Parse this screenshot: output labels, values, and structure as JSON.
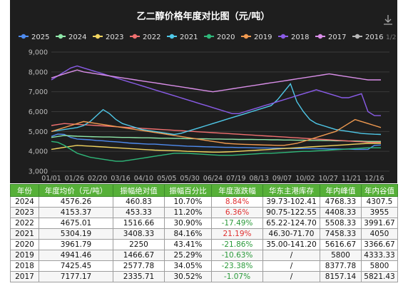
{
  "chart_data": {
    "type": "line",
    "title": "乙二醇价格年度对比图（元/吨）",
    "xlabel": "",
    "ylabel": "",
    "ylim": [
      3000,
      9000
    ],
    "y_ticks": [
      "3,000",
      "4,000",
      "5,000",
      "6,000",
      "7,000",
      "8,000",
      "9,000"
    ],
    "x_ticks": [
      "01/01",
      "01/26",
      "02/20",
      "03/16",
      "04/10",
      "05/05",
      "05/30",
      "06/24",
      "07/19",
      "08/13",
      "09/07",
      "10/02",
      "10/27",
      "11/21",
      "12/16"
    ],
    "grid": true,
    "legend_position": "top",
    "legend_page": "1/2",
    "series": [
      {
        "name": "2025",
        "color": "#4f8cf0",
        "values": [
          4750,
          4870,
          4850,
          4700,
          4620,
          4600,
          4580,
          4550,
          4530,
          4500,
          4480,
          4450,
          4420,
          4400,
          4380,
          4360,
          4360,
          4340,
          4320,
          4300,
          4280,
          4260,
          4250,
          4240,
          4230,
          4220,
          4210,
          4200,
          4200,
          4190,
          4190,
          4180,
          4170,
          4170,
          4160,
          4160,
          4150,
          4150,
          4140,
          4140,
          4140,
          4130,
          4130,
          4120,
          4120,
          4110,
          4110,
          4100,
          4100,
          4100,
          4300,
          4320
        ]
      },
      {
        "name": "2024",
        "color": "#8ee6a8",
        "values": [
          4700,
          4750,
          4800,
          4780,
          4760,
          4750,
          4740,
          4730,
          4720,
          4720,
          4710,
          4700,
          4700,
          4690,
          4680,
          4680,
          4670,
          4660,
          4660,
          4650,
          4650,
          4640,
          4640,
          4630,
          4630,
          4620,
          4620,
          4610,
          4610,
          4600,
          4600,
          4600,
          4590,
          4590,
          4580,
          4580,
          4570,
          4570,
          4560,
          4560,
          4550,
          4550,
          4540,
          4540,
          4530,
          4530,
          4520,
          4520,
          4510,
          4500,
          4500,
          4500
        ]
      },
      {
        "name": "2023",
        "color": "#f2d560",
        "values": [
          4100,
          4150,
          4200,
          4250,
          4300,
          4280,
          4260,
          4240,
          4220,
          4200,
          4180,
          4160,
          4140,
          4120,
          4100,
          4080,
          4060,
          4050,
          4040,
          4030,
          4020,
          4000,
          3990,
          3980,
          3970,
          3960,
          3960,
          3970,
          3980,
          4000,
          4020,
          4040,
          4060,
          4080,
          4100,
          4120,
          4140,
          4160,
          4180,
          4200,
          4220,
          4240,
          4260,
          4280,
          4300,
          4320,
          4340,
          4360,
          4380,
          4400,
          4400,
          4400
        ]
      },
      {
        "name": "2022",
        "color": "#f07070",
        "values": [
          5300,
          5350,
          5400,
          5380,
          5360,
          5340,
          5320,
          5300,
          5280,
          5260,
          5240,
          5220,
          5200,
          5180,
          5160,
          5140,
          5120,
          5100,
          5080,
          5060,
          5040,
          5020,
          5000,
          4980,
          4960,
          4940,
          4920,
          4900,
          4880,
          4860,
          4840,
          4820,
          4800,
          4780,
          4760,
          4740,
          4720,
          4700,
          4680,
          4660,
          4640,
          4620,
          4600,
          4580,
          4560,
          4540,
          4520,
          4500,
          4480,
          4460,
          4450,
          4450
        ]
      },
      {
        "name": "2021",
        "color": "#4fc8e8",
        "values": [
          5000,
          5050,
          5100,
          5150,
          5200,
          5300,
          5500,
          5800,
          6100,
          5900,
          5600,
          5400,
          5300,
          5200,
          5100,
          5050,
          5000,
          4950,
          4900,
          4850,
          4900,
          5000,
          5100,
          5200,
          5300,
          5400,
          5500,
          5600,
          5700,
          5800,
          5900,
          6000,
          6100,
          6200,
          6300,
          6600,
          7000,
          7400,
          6500,
          6000,
          5600,
          5400,
          5300,
          5200,
          5100,
          5050,
          5000,
          4950,
          4900,
          4880,
          4860,
          4850
        ]
      },
      {
        "name": "2020",
        "color": "#2fb87a",
        "values": [
          4500,
          4450,
          4300,
          4100,
          3900,
          3800,
          3700,
          3650,
          3600,
          3550,
          3500,
          3500,
          3550,
          3600,
          3650,
          3700,
          3750,
          3800,
          3850,
          3900,
          3900,
          3900,
          3880,
          3860,
          3840,
          3820,
          3800,
          3800,
          3800,
          3820,
          3840,
          3860,
          3880,
          3900,
          3900,
          3920,
          3940,
          3960,
          3980,
          4000,
          4000,
          4020,
          4040,
          4060,
          4080,
          4100,
          4120,
          4140,
          4160,
          4180,
          4180,
          4180
        ]
      },
      {
        "name": "2019",
        "color": "#f09a50",
        "values": [
          5000,
          5100,
          5200,
          5300,
          5400,
          5500,
          5450,
          5400,
          5350,
          5300,
          5250,
          5200,
          5150,
          5100,
          5050,
          5000,
          4950,
          4900,
          4850,
          4800,
          4750,
          4700,
          4650,
          4600,
          4550,
          4500,
          4450,
          4400,
          4380,
          4360,
          4350,
          4340,
          4330,
          4320,
          4310,
          4300,
          4300,
          4350,
          4400,
          4500,
          4600,
          4700,
          4800,
          4900,
          5000,
          5200,
          5400,
          5600,
          5500,
          5400,
          5300,
          5200
        ]
      },
      {
        "name": "2018",
        "color": "#8a5ce8",
        "values": [
          7600,
          7800,
          8000,
          8200,
          8300,
          8200,
          8100,
          8000,
          7900,
          7800,
          7700,
          7600,
          7500,
          7400,
          7300,
          7200,
          7100,
          7000,
          6900,
          6800,
          6700,
          6600,
          6500,
          6400,
          6300,
          6200,
          6100,
          6000,
          5900,
          5900,
          6000,
          6100,
          6200,
          6300,
          6400,
          6500,
          6600,
          6700,
          6800,
          6900,
          7000,
          7100,
          7000,
          6900,
          6800,
          6700,
          6700,
          6800,
          6900,
          6000,
          5800,
          5800
        ]
      },
      {
        "name": "2017",
        "color": "#d98ee8",
        "values": [
          7700,
          7800,
          7900,
          8000,
          8100,
          8000,
          7950,
          7900,
          7850,
          7800,
          7750,
          7700,
          7650,
          7600,
          7550,
          7500,
          7450,
          7400,
          7350,
          7300,
          7250,
          7200,
          7150,
          7100,
          7050,
          7000,
          7050,
          7100,
          7150,
          7200,
          7250,
          7300,
          7350,
          7400,
          7450,
          7500,
          7550,
          7600,
          7650,
          7700,
          7750,
          7800,
          7850,
          7900,
          7850,
          7800,
          7750,
          7700,
          7650,
          7600,
          7600,
          7600
        ]
      },
      {
        "name": "2016",
        "color": "#b8b8b8",
        "values": []
      }
    ]
  },
  "table": {
    "headers": [
      "年份",
      "年度均价（元/吨）",
      "振幅绝对值",
      "振幅百分比",
      "年度涨跌幅",
      "华东主港库存",
      "年内峰值",
      "年内谷值"
    ],
    "rows": [
      {
        "year": "2024",
        "avg": "4576.26",
        "amp_abs": "460.83",
        "amp_pct": "10.70%",
        "change": "8.84%",
        "dir": "up",
        "stock": "39.73-102.41",
        "peak": "4768.33",
        "trough": "4307.5"
      },
      {
        "year": "2023",
        "avg": "4153.37",
        "amp_abs": "453.33",
        "amp_pct": "11.20%",
        "change": "6.36%",
        "dir": "up",
        "stock": "90.75-122.55",
        "peak": "4408.33",
        "trough": "3955"
      },
      {
        "year": "2022",
        "avg": "4675.01",
        "amp_abs": "1516.66",
        "amp_pct": "30.90%",
        "change": "-17.49%",
        "dir": "down",
        "stock": "65.22-124.70",
        "peak": "5508.33",
        "trough": "3991.67"
      },
      {
        "year": "2021",
        "avg": "5304.19",
        "amp_abs": "3408.33",
        "amp_pct": "84.16%",
        "change": "21.19%",
        "dir": "up",
        "stock": "46.30-71.70",
        "peak": "7458.33",
        "trough": "4050"
      },
      {
        "year": "2020",
        "avg": "3961.79",
        "amp_abs": "2250",
        "amp_pct": "43.41%",
        "change": "-21.86%",
        "dir": "down",
        "stock": "35.00-141.20",
        "peak": "5616.67",
        "trough": "3366.67"
      },
      {
        "year": "2019",
        "avg": "4941.46",
        "amp_abs": "1466.67",
        "amp_pct": "25.29%",
        "change": "-10.63%",
        "dir": "down",
        "stock": "/",
        "peak": "5800",
        "trough": "4333.33"
      },
      {
        "year": "2018",
        "avg": "7425.45",
        "amp_abs": "2577.78",
        "amp_pct": "34.05%",
        "change": "-23.38%",
        "dir": "down",
        "stock": "/",
        "peak": "8377.78",
        "trough": "5800"
      },
      {
        "year": "2017",
        "avg": "7177.17",
        "amp_abs": "2335.71",
        "amp_pct": "30.52%",
        "change": "-1.07%",
        "dir": "down",
        "stock": "/",
        "peak": "8157.14",
        "trough": "5821.43"
      }
    ]
  }
}
